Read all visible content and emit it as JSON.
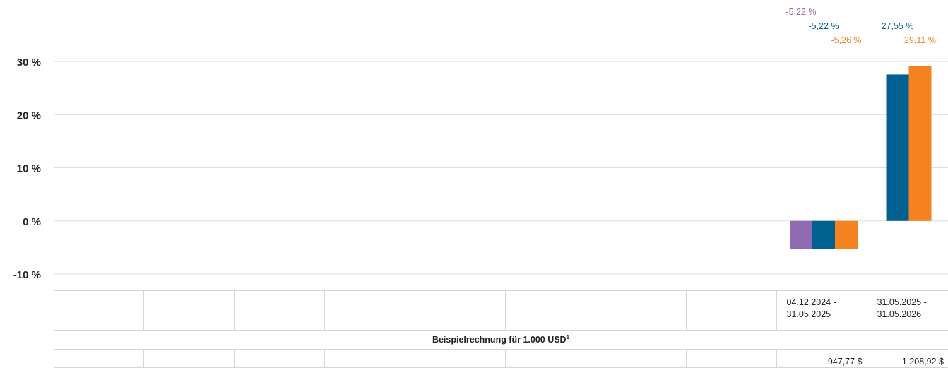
{
  "chart_data": {
    "type": "bar",
    "categories": [
      "04.12.2024 - 31.05.2025",
      "31.05.2025 - 31.05.2026"
    ],
    "series": [
      {
        "color": "#8e6bb2",
        "values": [
          -5.22,
          null
        ],
        "labels": [
          "-5,22 %",
          ""
        ]
      },
      {
        "color": "#00608f",
        "values": [
          -5.22,
          27.55
        ],
        "labels": [
          "-5,22 %",
          "27,55 %"
        ]
      },
      {
        "color": "#f4821f",
        "values": [
          -5.26,
          29.11
        ],
        "labels": [
          "-5,26 %",
          "29,11 %"
        ]
      }
    ],
    "y_ticks": [
      30,
      20,
      10,
      0,
      -10
    ],
    "y_tick_labels": [
      "30 %",
      "20 %",
      "10 %",
      "0 %",
      "-10 %"
    ],
    "ylim": [
      -10,
      30
    ],
    "grid": true
  },
  "table": {
    "periods": [
      {
        "line1": "04.12.2024 -",
        "line2": "31.05.2025"
      },
      {
        "line1": "31.05.2025 -",
        "line2": "31.05.2026"
      }
    ],
    "example_label": "Beispielrechnung für 1.000 USD",
    "example_footnote": "1",
    "amounts": [
      "947,77 $",
      "1.208,92 $"
    ]
  }
}
